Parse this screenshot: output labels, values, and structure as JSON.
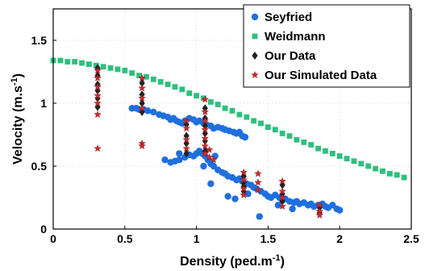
{
  "chart_data": {
    "type": "scatter",
    "xlabel": "Density (ped.m",
    "xlabel_sup": "-1",
    "xlabel_close": ")",
    "ylabel": "Velocity (m.s",
    "ylabel_sup": "-1",
    "ylabel_close": ")",
    "xlim": [
      0,
      2.5
    ],
    "ylim": [
      0,
      1.75
    ],
    "xticks": [
      0,
      0.5,
      1,
      1.5,
      2,
      2.5
    ],
    "xtick_labels": [
      "0",
      "0.5",
      "1",
      "1.5",
      "2",
      "2.5"
    ],
    "yticks": [
      0,
      0.5,
      1,
      1.5
    ],
    "ytick_labels": [
      "0",
      "0.5",
      "1",
      "1.5"
    ],
    "grid": true,
    "legend_position": "top-right",
    "series": [
      {
        "name": "Seyfried",
        "marker": "circle",
        "color": "#1f6fe0",
        "points": [
          [
            0.55,
            0.96
          ],
          [
            0.58,
            0.96
          ],
          [
            0.6,
            0.95
          ],
          [
            0.63,
            0.95
          ],
          [
            0.66,
            0.94
          ],
          [
            0.7,
            0.93
          ],
          [
            0.74,
            0.91
          ],
          [
            0.77,
            0.9
          ],
          [
            0.8,
            0.89
          ],
          [
            0.82,
            0.87
          ],
          [
            0.84,
            0.88
          ],
          [
            0.86,
            0.86
          ],
          [
            0.88,
            0.85
          ],
          [
            0.9,
            0.84
          ],
          [
            0.92,
            0.86
          ],
          [
            0.95,
            0.88
          ],
          [
            0.98,
            0.87
          ],
          [
            1.0,
            0.85
          ],
          [
            1.02,
            0.86
          ],
          [
            1.05,
            0.84
          ],
          [
            1.07,
            0.83
          ],
          [
            1.1,
            0.82
          ],
          [
            1.12,
            0.8
          ],
          [
            1.15,
            0.81
          ],
          [
            1.18,
            0.8
          ],
          [
            1.2,
            0.79
          ],
          [
            1.23,
            0.78
          ],
          [
            1.26,
            0.77
          ],
          [
            1.28,
            0.76
          ],
          [
            1.3,
            0.77
          ],
          [
            1.32,
            0.74
          ],
          [
            1.34,
            0.73
          ],
          [
            0.78,
            0.55
          ],
          [
            0.82,
            0.53
          ],
          [
            0.85,
            0.54
          ],
          [
            0.88,
            0.55
          ],
          [
            0.92,
            0.57
          ],
          [
            0.95,
            0.59
          ],
          [
            0.98,
            0.58
          ],
          [
            1.0,
            0.6
          ],
          [
            1.02,
            0.62
          ],
          [
            1.04,
            0.6
          ],
          [
            1.06,
            0.58
          ],
          [
            1.08,
            0.55
          ],
          [
            1.1,
            0.52
          ],
          [
            1.12,
            0.5
          ],
          [
            1.15,
            0.47
          ],
          [
            1.18,
            0.45
          ],
          [
            1.2,
            0.44
          ],
          [
            1.22,
            0.42
          ],
          [
            1.25,
            0.41
          ],
          [
            1.28,
            0.39
          ],
          [
            1.3,
            0.4
          ],
          [
            1.32,
            0.38
          ],
          [
            1.35,
            0.36
          ],
          [
            1.38,
            0.35
          ],
          [
            1.4,
            0.33
          ],
          [
            1.42,
            0.32
          ],
          [
            1.45,
            0.3
          ],
          [
            1.48,
            0.28
          ],
          [
            1.5,
            0.26
          ],
          [
            1.52,
            0.25
          ],
          [
            1.55,
            0.27
          ],
          [
            1.58,
            0.25
          ],
          [
            1.6,
            0.23
          ],
          [
            1.62,
            0.24
          ],
          [
            1.65,
            0.22
          ],
          [
            1.68,
            0.21
          ],
          [
            1.7,
            0.22
          ],
          [
            1.72,
            0.2
          ],
          [
            1.75,
            0.21
          ],
          [
            1.78,
            0.19
          ],
          [
            1.8,
            0.2
          ],
          [
            1.82,
            0.18
          ],
          [
            1.85,
            0.19
          ],
          [
            1.88,
            0.2
          ],
          [
            1.9,
            0.18
          ],
          [
            1.92,
            0.17
          ],
          [
            1.95,
            0.19
          ],
          [
            1.98,
            0.16
          ],
          [
            2.0,
            0.15
          ],
          [
            1.22,
            0.26
          ],
          [
            1.27,
            0.24
          ],
          [
            1.36,
            0.28
          ],
          [
            1.44,
            0.1
          ],
          [
            1.57,
            0.19
          ],
          [
            1.67,
            0.16
          ],
          [
            1.05,
            0.5
          ],
          [
            1.1,
            0.36
          ],
          [
            0.88,
            0.6
          ],
          [
            1.13,
            0.58
          ]
        ]
      },
      {
        "name": "Weidmann",
        "marker": "square",
        "color": "#2ebf7e",
        "points": [
          [
            0.0,
            1.34
          ],
          [
            0.05,
            1.34
          ],
          [
            0.1,
            1.33
          ],
          [
            0.15,
            1.33
          ],
          [
            0.2,
            1.32
          ],
          [
            0.25,
            1.31
          ],
          [
            0.3,
            1.3
          ],
          [
            0.35,
            1.29
          ],
          [
            0.4,
            1.28
          ],
          [
            0.45,
            1.27
          ],
          [
            0.5,
            1.26
          ],
          [
            0.55,
            1.24
          ],
          [
            0.6,
            1.22
          ],
          [
            0.65,
            1.21
          ],
          [
            0.7,
            1.19
          ],
          [
            0.75,
            1.17
          ],
          [
            0.8,
            1.15
          ],
          [
            0.85,
            1.13
          ],
          [
            0.9,
            1.11
          ],
          [
            0.95,
            1.08
          ],
          [
            1.0,
            1.06
          ],
          [
            1.05,
            1.04
          ],
          [
            1.1,
            1.01
          ],
          [
            1.15,
            0.99
          ],
          [
            1.2,
            0.96
          ],
          [
            1.25,
            0.94
          ],
          [
            1.3,
            0.91
          ],
          [
            1.35,
            0.89
          ],
          [
            1.4,
            0.86
          ],
          [
            1.45,
            0.84
          ],
          [
            1.5,
            0.81
          ],
          [
            1.55,
            0.79
          ],
          [
            1.6,
            0.76
          ],
          [
            1.65,
            0.74
          ],
          [
            1.7,
            0.71
          ],
          [
            1.75,
            0.69
          ],
          [
            1.8,
            0.67
          ],
          [
            1.85,
            0.64
          ],
          [
            1.9,
            0.62
          ],
          [
            1.95,
            0.6
          ],
          [
            2.0,
            0.58
          ],
          [
            2.05,
            0.56
          ],
          [
            2.1,
            0.54
          ],
          [
            2.15,
            0.52
          ],
          [
            2.2,
            0.5
          ],
          [
            2.25,
            0.48
          ],
          [
            2.3,
            0.46
          ],
          [
            2.35,
            0.44
          ],
          [
            2.4,
            0.43
          ],
          [
            2.45,
            0.41
          ]
        ]
      },
      {
        "name": "Our Data",
        "marker": "diamond",
        "color": "#222222",
        "points": [
          [
            0.31,
            1.28
          ],
          [
            0.31,
            1.22
          ],
          [
            0.31,
            1.15
          ],
          [
            0.31,
            1.1
          ],
          [
            0.31,
            1.04
          ],
          [
            0.31,
            0.97
          ],
          [
            0.62,
            1.16
          ],
          [
            0.62,
            1.07
          ],
          [
            0.62,
            1.0
          ],
          [
            0.62,
            0.93
          ],
          [
            0.93,
            0.83
          ],
          [
            0.93,
            0.74
          ],
          [
            0.93,
            0.68
          ],
          [
            0.93,
            0.6
          ],
          [
            1.06,
            0.96
          ],
          [
            1.06,
            0.88
          ],
          [
            1.06,
            0.82
          ],
          [
            1.06,
            0.76
          ],
          [
            1.06,
            0.7
          ],
          [
            1.06,
            0.62
          ],
          [
            1.33,
            0.42
          ],
          [
            1.33,
            0.37
          ],
          [
            1.33,
            0.34
          ],
          [
            1.33,
            0.3
          ],
          [
            1.6,
            0.35
          ],
          [
            1.6,
            0.28
          ],
          [
            1.6,
            0.22
          ],
          [
            1.86,
            0.17
          ],
          [
            1.86,
            0.13
          ]
        ]
      },
      {
        "name": "Our Simulated Data",
        "marker": "star",
        "color": "#cc2b2b",
        "points": [
          [
            0.31,
            1.26
          ],
          [
            0.31,
            1.2
          ],
          [
            0.31,
            1.13
          ],
          [
            0.31,
            1.06
          ],
          [
            0.31,
            1.0
          ],
          [
            0.31,
            0.91
          ],
          [
            0.31,
            0.64
          ],
          [
            0.62,
            1.2
          ],
          [
            0.62,
            1.12
          ],
          [
            0.62,
            1.04
          ],
          [
            0.62,
            0.96
          ],
          [
            0.62,
            0.68
          ],
          [
            0.62,
            0.66
          ],
          [
            0.93,
            0.86
          ],
          [
            0.93,
            0.8
          ],
          [
            0.93,
            0.71
          ],
          [
            0.93,
            0.64
          ],
          [
            1.06,
            1.03
          ],
          [
            1.06,
            0.93
          ],
          [
            1.06,
            0.86
          ],
          [
            1.06,
            0.79
          ],
          [
            1.06,
            0.72
          ],
          [
            1.06,
            0.66
          ],
          [
            1.06,
            0.6
          ],
          [
            1.09,
            0.63
          ],
          [
            1.09,
            0.57
          ],
          [
            1.12,
            0.55
          ],
          [
            1.33,
            0.45
          ],
          [
            1.33,
            0.39
          ],
          [
            1.33,
            0.32
          ],
          [
            1.33,
            0.27
          ],
          [
            1.43,
            0.44
          ],
          [
            1.43,
            0.37
          ],
          [
            1.43,
            0.31
          ],
          [
            1.6,
            0.38
          ],
          [
            1.6,
            0.3
          ],
          [
            1.6,
            0.25
          ],
          [
            1.6,
            0.18
          ],
          [
            1.86,
            0.19
          ],
          [
            1.86,
            0.14
          ],
          [
            1.86,
            0.11
          ]
        ]
      }
    ]
  }
}
